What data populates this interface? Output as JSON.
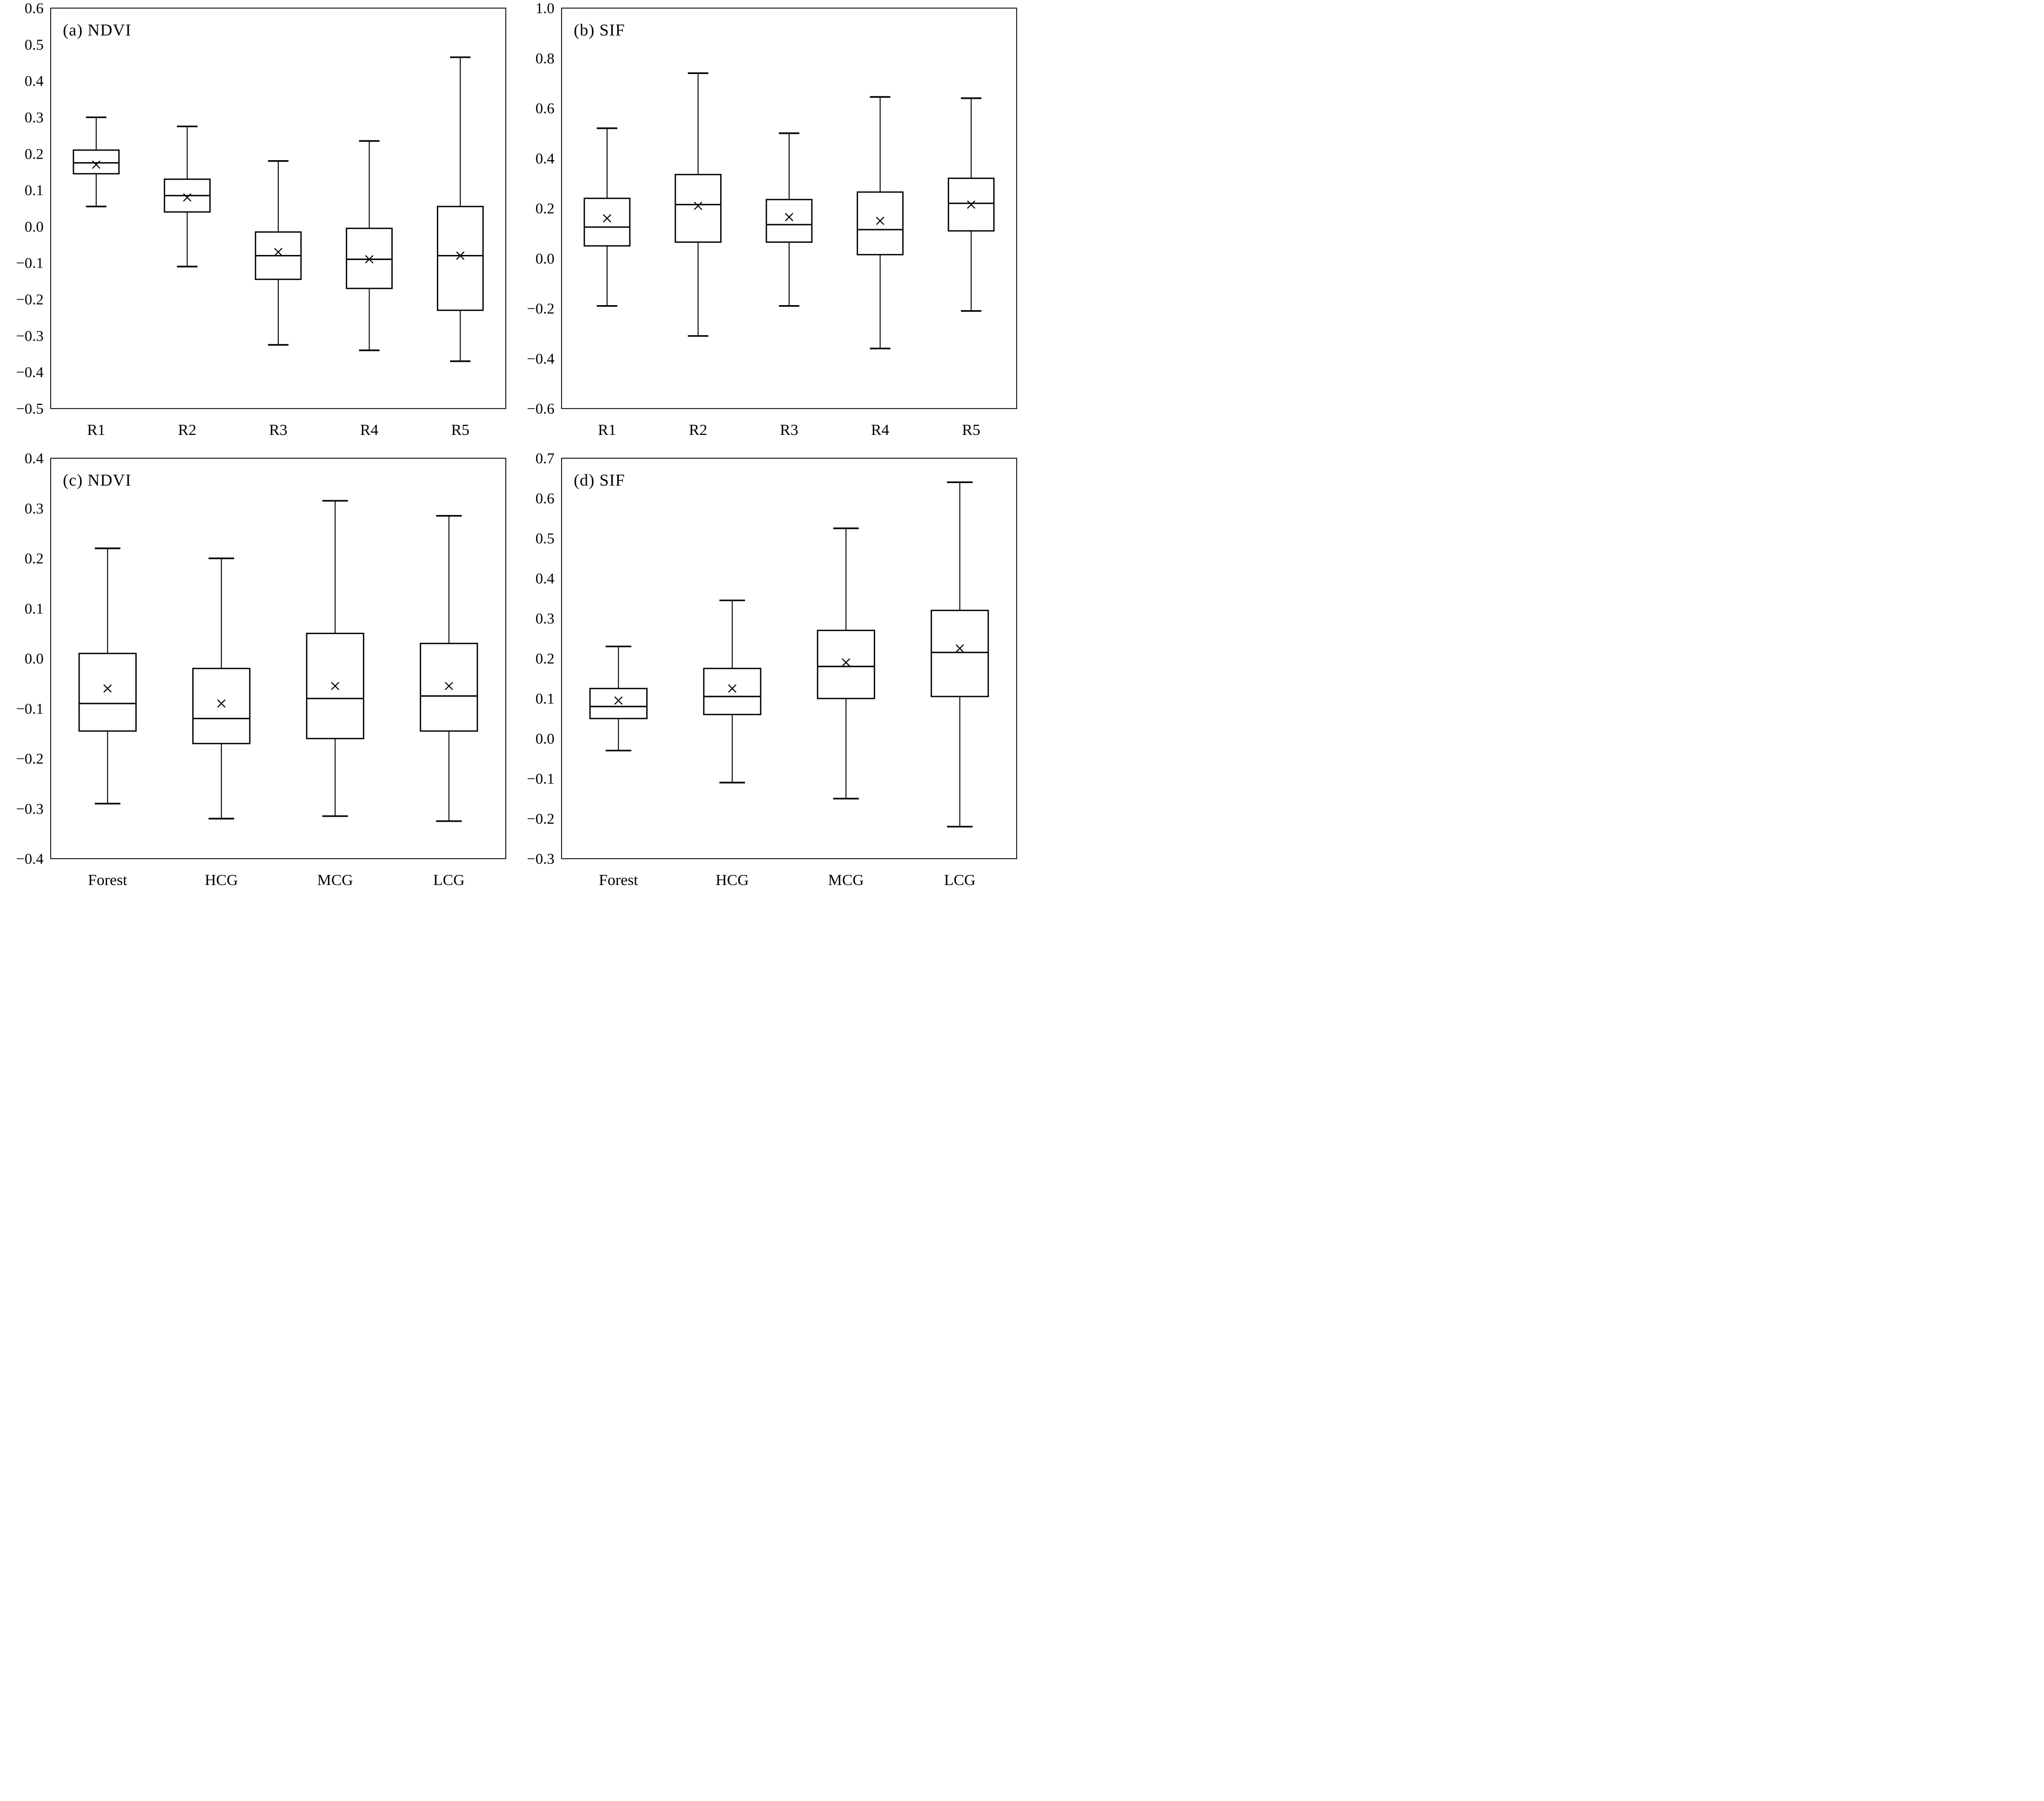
{
  "figure": {
    "background_color": "#ffffff",
    "stroke_color": "#000000",
    "mean_marker": "x-cross",
    "grid": false
  },
  "chart_data": [
    {
      "type": "box",
      "panel": "a",
      "title": "(a) NDVI",
      "ylabel": "",
      "xlabel": "",
      "ylim": [
        -0.5,
        0.6
      ],
      "yticks": [
        0.6,
        0.5,
        0.4,
        0.3,
        0.2,
        0.1,
        0.0,
        -0.1,
        -0.2,
        -0.3,
        -0.4,
        -0.5
      ],
      "ytick_labels": [
        "0.6",
        "0.5",
        "0.4",
        "0.3",
        "0.2",
        "0.1",
        "0.0",
        "−0.1",
        "−0.2",
        "−0.3",
        "−0.4",
        "−0.5"
      ],
      "categories": [
        "R1",
        "R2",
        "R3",
        "R4",
        "R5"
      ],
      "boxes": [
        {
          "category": "R1",
          "whisker_low": 0.055,
          "q1": 0.145,
          "median": 0.175,
          "mean": 0.17,
          "q3": 0.21,
          "whisker_high": 0.3
        },
        {
          "category": "R2",
          "whisker_low": -0.11,
          "q1": 0.04,
          "median": 0.085,
          "mean": 0.08,
          "q3": 0.13,
          "whisker_high": 0.275
        },
        {
          "category": "R3",
          "whisker_low": -0.325,
          "q1": -0.145,
          "median": -0.08,
          "mean": -0.07,
          "q3": -0.015,
          "whisker_high": 0.18
        },
        {
          "category": "R4",
          "whisker_low": -0.34,
          "q1": -0.17,
          "median": -0.09,
          "mean": -0.09,
          "q3": -0.005,
          "whisker_high": 0.235
        },
        {
          "category": "R5",
          "whisker_low": -0.37,
          "q1": -0.23,
          "median": -0.08,
          "mean": -0.08,
          "q3": 0.055,
          "whisker_high": 0.465
        }
      ]
    },
    {
      "type": "box",
      "panel": "b",
      "title": "(b) SIF",
      "ylabel": "",
      "xlabel": "",
      "ylim": [
        -0.6,
        1.0
      ],
      "yticks": [
        1.0,
        0.8,
        0.6,
        0.4,
        0.2,
        0.0,
        -0.2,
        -0.4,
        -0.6
      ],
      "ytick_labels": [
        "1.0",
        "0.8",
        "0.6",
        "0.4",
        "0.2",
        "0.0",
        "−0.2",
        "−0.4",
        "−0.6"
      ],
      "categories": [
        "R1",
        "R2",
        "R3",
        "R4",
        "R5"
      ],
      "boxes": [
        {
          "category": "R1",
          "whisker_low": -0.19,
          "q1": 0.05,
          "median": 0.125,
          "mean": 0.16,
          "q3": 0.24,
          "whisker_high": 0.52
        },
        {
          "category": "R2",
          "whisker_low": -0.31,
          "q1": 0.065,
          "median": 0.215,
          "mean": 0.21,
          "q3": 0.335,
          "whisker_high": 0.74
        },
        {
          "category": "R3",
          "whisker_low": -0.19,
          "q1": 0.065,
          "median": 0.135,
          "mean": 0.165,
          "q3": 0.235,
          "whisker_high": 0.5
        },
        {
          "category": "R4",
          "whisker_low": -0.36,
          "q1": 0.015,
          "median": 0.115,
          "mean": 0.15,
          "q3": 0.265,
          "whisker_high": 0.645
        },
        {
          "category": "R5",
          "whisker_low": -0.21,
          "q1": 0.11,
          "median": 0.22,
          "mean": 0.215,
          "q3": 0.32,
          "whisker_high": 0.64
        }
      ]
    },
    {
      "type": "box",
      "panel": "c",
      "title": "(c) NDVI",
      "ylabel": "",
      "xlabel": "",
      "ylim": [
        -0.4,
        0.4
      ],
      "yticks": [
        0.4,
        0.3,
        0.2,
        0.1,
        0.0,
        -0.1,
        -0.2,
        -0.3,
        -0.4
      ],
      "ytick_labels": [
        "0.4",
        "0.3",
        "0.2",
        "0.1",
        "0.0",
        "−0.1",
        "−0.2",
        "−0.3",
        "−0.4"
      ],
      "categories": [
        "Forest",
        "HCG",
        "MCG",
        "LCG"
      ],
      "boxes": [
        {
          "category": "Forest",
          "whisker_low": -0.29,
          "q1": -0.145,
          "median": -0.09,
          "mean": -0.06,
          "q3": 0.01,
          "whisker_high": 0.22
        },
        {
          "category": "HCG",
          "whisker_low": -0.32,
          "q1": -0.17,
          "median": -0.12,
          "mean": -0.09,
          "q3": -0.02,
          "whisker_high": 0.2
        },
        {
          "category": "MCG",
          "whisker_low": -0.315,
          "q1": -0.16,
          "median": -0.08,
          "mean": -0.055,
          "q3": 0.05,
          "whisker_high": 0.315
        },
        {
          "category": "LCG",
          "whisker_low": -0.325,
          "q1": -0.145,
          "median": -0.075,
          "mean": -0.055,
          "q3": 0.03,
          "whisker_high": 0.285
        }
      ]
    },
    {
      "type": "box",
      "panel": "d",
      "title": "(d) SIF",
      "ylabel": "",
      "xlabel": "",
      "ylim": [
        -0.3,
        0.7
      ],
      "yticks": [
        0.7,
        0.6,
        0.5,
        0.4,
        0.3,
        0.2,
        0.1,
        0.0,
        -0.1,
        -0.2,
        -0.3
      ],
      "ytick_labels": [
        "0.7",
        "0.6",
        "0.5",
        "0.4",
        "0.3",
        "0.2",
        "0.1",
        "0.0",
        "−0.1",
        "−0.2",
        "−0.3"
      ],
      "categories": [
        "Forest",
        "HCG",
        "MCG",
        "LCG"
      ],
      "boxes": [
        {
          "category": "Forest",
          "whisker_low": -0.03,
          "q1": 0.05,
          "median": 0.08,
          "mean": 0.095,
          "q3": 0.125,
          "whisker_high": 0.23
        },
        {
          "category": "HCG",
          "whisker_low": -0.11,
          "q1": 0.06,
          "median": 0.105,
          "mean": 0.125,
          "q3": 0.175,
          "whisker_high": 0.345
        },
        {
          "category": "MCG",
          "whisker_low": -0.15,
          "q1": 0.1,
          "median": 0.18,
          "mean": 0.19,
          "q3": 0.27,
          "whisker_high": 0.525
        },
        {
          "category": "LCG",
          "whisker_low": -0.22,
          "q1": 0.105,
          "median": 0.215,
          "mean": 0.225,
          "q3": 0.32,
          "whisker_high": 0.64
        }
      ]
    }
  ]
}
